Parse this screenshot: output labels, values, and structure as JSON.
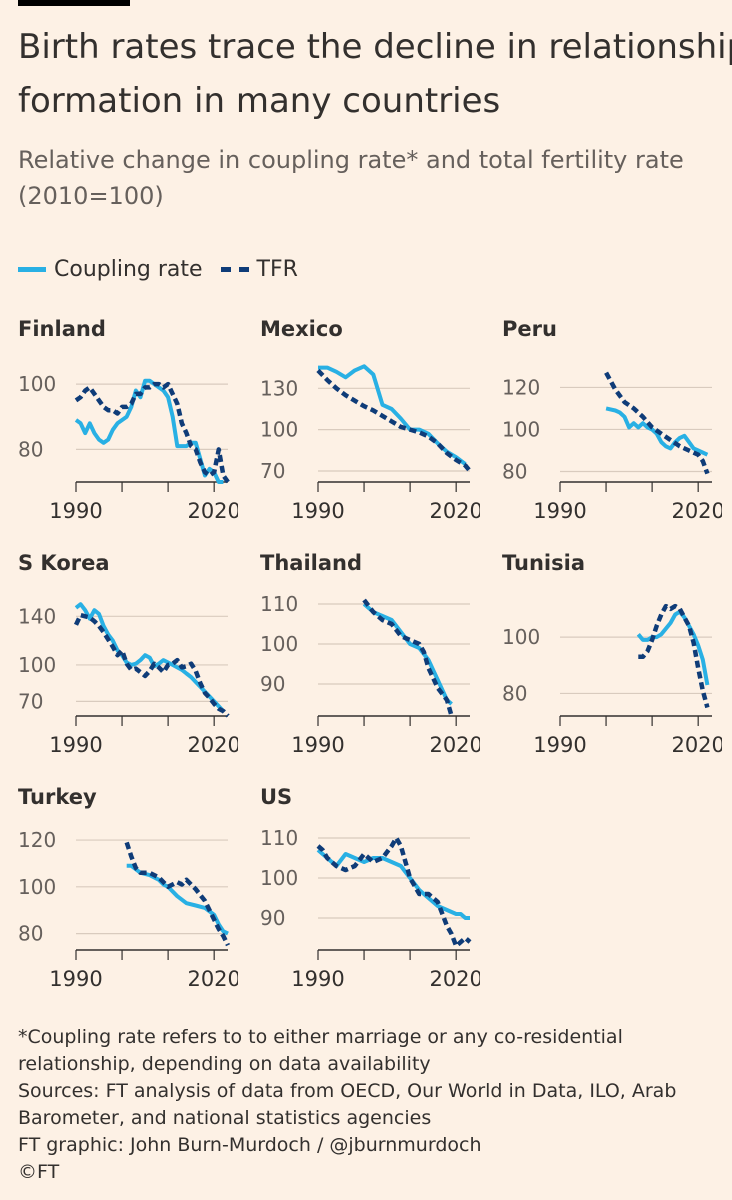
{
  "title_lines": [
    "Birth rates trace the decline in relationship",
    "formation in many countries"
  ],
  "subtitle_lines": [
    "Relative change in coupling rate* and total fertility rate",
    "(2010=100)"
  ],
  "legend": {
    "coupling": "Coupling rate",
    "tfr": "TFR"
  },
  "colors": {
    "coupling": "#29b0e4",
    "tfr": "#0f3c78",
    "background": "#fdf1e5",
    "grid": "#d9cbbe",
    "axis": "#33302e"
  },
  "chart_data": [
    {
      "type": "line",
      "title": "Finland",
      "xlim": [
        1990,
        2023
      ],
      "xticks": [
        1990,
        2020
      ],
      "yticks": [
        80,
        100
      ],
      "ylim": [
        70,
        108
      ],
      "series": [
        {
          "name": "Coupling rate",
          "x": [
            1990,
            1991,
            1992,
            1993,
            1994,
            1995,
            1996,
            1997,
            1998,
            1999,
            2000,
            2001,
            2002,
            2003,
            2004,
            2005,
            2006,
            2007,
            2008,
            2009,
            2010,
            2011,
            2012,
            2013,
            2014,
            2015,
            2016,
            2017,
            2018,
            2019,
            2020,
            2021,
            2022
          ],
          "values": [
            89,
            88,
            85,
            88,
            85,
            83,
            82,
            83,
            86,
            88,
            89,
            90,
            93,
            98,
            96,
            101,
            101,
            100,
            99,
            98,
            96,
            90,
            81,
            81,
            81,
            82,
            82,
            77,
            72,
            74,
            73,
            70,
            70
          ]
        },
        {
          "name": "TFR",
          "x": [
            1990,
            1991,
            1992,
            1993,
            1994,
            1995,
            1996,
            1997,
            1998,
            1999,
            2000,
            2001,
            2002,
            2003,
            2004,
            2005,
            2006,
            2007,
            2008,
            2009,
            2010,
            2011,
            2012,
            2013,
            2014,
            2015,
            2016,
            2017,
            2018,
            2019,
            2020,
            2021,
            2022,
            2023
          ],
          "values": [
            95,
            96,
            98,
            99,
            97,
            95,
            93,
            92,
            92,
            91,
            93,
            93,
            94,
            97,
            97,
            99,
            99,
            100,
            100,
            99,
            100,
            97,
            94,
            88,
            85,
            81,
            80,
            76,
            73,
            72,
            73,
            80,
            72,
            70
          ]
        }
      ]
    },
    {
      "type": "line",
      "title": "Mexico",
      "xlim": [
        1990,
        2023
      ],
      "xticks": [
        1990,
        2020
      ],
      "yticks": [
        70,
        100,
        130
      ],
      "ylim": [
        62,
        152
      ],
      "series": [
        {
          "name": "Coupling rate",
          "x": [
            1990,
            1992,
            1994,
            1996,
            1998,
            2000,
            2002,
            2004,
            2006,
            2008,
            2010,
            2012,
            2014,
            2016,
            2018,
            2020,
            2022
          ],
          "values": [
            145,
            145,
            142,
            138,
            143,
            146,
            140,
            118,
            115,
            108,
            100,
            100,
            97,
            90,
            84,
            80,
            75
          ]
        },
        {
          "name": "TFR",
          "x": [
            1990,
            1992,
            1994,
            1996,
            1998,
            2000,
            2002,
            2004,
            2006,
            2008,
            2010,
            2012,
            2014,
            2016,
            2018,
            2020,
            2022,
            2023
          ],
          "values": [
            143,
            136,
            130,
            125,
            121,
            117,
            114,
            110,
            106,
            102,
            100,
            98,
            95,
            90,
            83,
            78,
            74,
            70
          ]
        }
      ]
    },
    {
      "type": "line",
      "title": "Peru",
      "xlim": [
        1990,
        2023
      ],
      "xticks": [
        1990,
        2020
      ],
      "yticks": [
        80,
        100,
        120
      ],
      "ylim": [
        75,
        134
      ],
      "series": [
        {
          "name": "Coupling rate",
          "x": [
            2000,
            2002,
            2003,
            2004,
            2005,
            2006,
            2007,
            2008,
            2009,
            2010,
            2011,
            2012,
            2013,
            2014,
            2015,
            2016,
            2017,
            2018,
            2019,
            2020,
            2021,
            2022
          ],
          "values": [
            110,
            109,
            108,
            106,
            101,
            103,
            101,
            103,
            101,
            100,
            98,
            94,
            92,
            91,
            94,
            96,
            97,
            94,
            91,
            90,
            89,
            88
          ]
        },
        {
          "name": "TFR",
          "x": [
            2000,
            2002,
            2004,
            2006,
            2008,
            2010,
            2012,
            2014,
            2016,
            2018,
            2020,
            2021,
            2022
          ],
          "values": [
            127,
            119,
            113,
            110,
            106,
            101,
            98,
            95,
            92,
            90,
            88,
            85,
            79
          ]
        }
      ]
    },
    {
      "type": "line",
      "title": "S Korea",
      "xlim": [
        1990,
        2023
      ],
      "xticks": [
        1990,
        2020
      ],
      "yticks": [
        70,
        100,
        140
      ],
      "ylim": [
        58,
        160
      ],
      "series": [
        {
          "name": "Coupling rate",
          "x": [
            1990,
            1991,
            1992,
            1993,
            1994,
            1995,
            1996,
            1997,
            1998,
            1999,
            2000,
            2001,
            2002,
            2003,
            2004,
            2005,
            2006,
            2007,
            2008,
            2009,
            2010,
            2011,
            2012,
            2013,
            2014,
            2015,
            2016,
            2017,
            2018,
            2019,
            2020,
            2021,
            2022
          ],
          "values": [
            147,
            150,
            145,
            138,
            145,
            142,
            132,
            125,
            120,
            112,
            108,
            102,
            100,
            101,
            104,
            108,
            106,
            99,
            101,
            104,
            102,
            100,
            98,
            96,
            93,
            90,
            86,
            82,
            78,
            74,
            70,
            66,
            62
          ]
        },
        {
          "name": "TFR",
          "x": [
            1990,
            1991,
            1992,
            1993,
            1994,
            1995,
            1996,
            1997,
            1998,
            1999,
            2000,
            2001,
            2002,
            2003,
            2004,
            2005,
            2006,
            2007,
            2008,
            2009,
            2010,
            2011,
            2012,
            2013,
            2014,
            2015,
            2016,
            2017,
            2018,
            2019,
            2020,
            2021,
            2022,
            2023
          ],
          "values": [
            133,
            141,
            140,
            139,
            136,
            132,
            127,
            121,
            115,
            108,
            112,
            101,
            96,
            97,
            94,
            91,
            95,
            101,
            98,
            94,
            100,
            101,
            104,
            98,
            99,
            101,
            95,
            85,
            77,
            73,
            68,
            64,
            62,
            58
          ]
        }
      ]
    },
    {
      "type": "line",
      "title": "Thailand",
      "xlim": [
        1990,
        2023
      ],
      "xticks": [
        1990,
        2020
      ],
      "yticks": [
        90,
        100,
        110
      ],
      "ylim": [
        82,
        113
      ],
      "series": [
        {
          "name": "Coupling rate",
          "x": [
            2000,
            2002,
            2004,
            2006,
            2008,
            2010,
            2012,
            2014,
            2016,
            2018,
            2019
          ],
          "values": [
            110,
            108,
            107,
            106,
            103,
            100,
            99,
            96,
            91,
            86,
            85
          ]
        },
        {
          "name": "TFR",
          "x": [
            2000,
            2002,
            2004,
            2006,
            2008,
            2010,
            2012,
            2013,
            2014,
            2016,
            2018,
            2019
          ],
          "values": [
            111,
            108,
            106,
            105,
            102,
            101,
            100,
            98,
            94,
            89,
            86,
            82
          ]
        }
      ]
    },
    {
      "type": "line",
      "title": "Tunisia",
      "xlim": [
        1990,
        2023
      ],
      "xticks": [
        1990,
        2020
      ],
      "yticks": [
        80,
        100
      ],
      "ylim": [
        72,
        116
      ],
      "series": [
        {
          "name": "Coupling rate",
          "x": [
            2007,
            2008,
            2009,
            2010,
            2011,
            2012,
            2013,
            2014,
            2015,
            2016,
            2017,
            2018,
            2019,
            2020,
            2021,
            2022
          ],
          "values": [
            101,
            99,
            99,
            100,
            100,
            101,
            103,
            105,
            108,
            109,
            107,
            104,
            101,
            97,
            92,
            83
          ]
        },
        {
          "name": "TFR",
          "x": [
            2007,
            2008,
            2009,
            2010,
            2011,
            2012,
            2013,
            2014,
            2015,
            2016,
            2017,
            2018,
            2019,
            2020,
            2021,
            2022
          ],
          "values": [
            93,
            93,
            95,
            99,
            104,
            108,
            111,
            110,
            111,
            110,
            107,
            104,
            98,
            89,
            81,
            75
          ]
        }
      ]
    },
    {
      "type": "line",
      "title": "Turkey",
      "xlim": [
        1990,
        2023
      ],
      "xticks": [
        1990,
        2020
      ],
      "yticks": [
        80,
        100,
        120
      ],
      "ylim": [
        73,
        126
      ],
      "series": [
        {
          "name": "Coupling rate",
          "x": [
            2001,
            2002,
            2004,
            2006,
            2008,
            2009,
            2010,
            2012,
            2014,
            2016,
            2018,
            2020,
            2021,
            2022,
            2023
          ],
          "values": [
            109,
            109,
            106,
            105,
            103,
            101,
            100,
            96,
            93,
            92,
            91,
            88,
            84,
            81,
            80
          ]
        },
        {
          "name": "TFR",
          "x": [
            2001,
            2002,
            2003,
            2004,
            2006,
            2008,
            2009,
            2010,
            2012,
            2013,
            2014,
            2016,
            2018,
            2019,
            2020,
            2021,
            2022,
            2023
          ],
          "values": [
            119,
            113,
            108,
            106,
            106,
            104,
            102,
            100,
            102,
            101,
            103,
            99,
            94,
            90,
            86,
            82,
            79,
            75
          ]
        }
      ]
    },
    {
      "type": "line",
      "title": "US",
      "xlim": [
        1990,
        2023
      ],
      "xticks": [
        1990,
        2020
      ],
      "yticks": [
        90,
        100,
        110
      ],
      "ylim": [
        82,
        113
      ],
      "series": [
        {
          "name": "Coupling rate",
          "x": [
            1990,
            1992,
            1994,
            1996,
            1998,
            2000,
            2002,
            2004,
            2006,
            2008,
            2010,
            2012,
            2014,
            2016,
            2018,
            2020,
            2021,
            2022,
            2023
          ],
          "values": [
            107,
            105,
            103,
            106,
            105,
            104,
            105,
            105,
            104,
            103,
            100,
            97,
            95,
            93,
            92,
            91,
            91,
            90,
            90
          ]
        },
        {
          "name": "TFR",
          "x": [
            1990,
            1991,
            1992,
            1994,
            1996,
            1998,
            2000,
            2002,
            2004,
            2006,
            2007,
            2008,
            2009,
            2010,
            2012,
            2014,
            2016,
            2018,
            2019,
            2020,
            2021,
            2022,
            2023
          ],
          "values": [
            108,
            107,
            105,
            103,
            102,
            103,
            106,
            104,
            105,
            108,
            110,
            108,
            104,
            100,
            96,
            96,
            94,
            88,
            86,
            83,
            84,
            85,
            84
          ]
        }
      ]
    }
  ],
  "footer": {
    "note_lines": [
      "*Coupling rate refers to to either marriage or any co-residential",
      "relationship, depending on data availability"
    ],
    "source_lines": [
      "Sources: FT analysis of data from OECD, Our World in Data, ILO, Arab",
      "Barometer, and national statistics agencies"
    ],
    "credit": "FT graphic: John Burn-Murdoch / @jburnmurdoch",
    "copyright": "©FT"
  }
}
